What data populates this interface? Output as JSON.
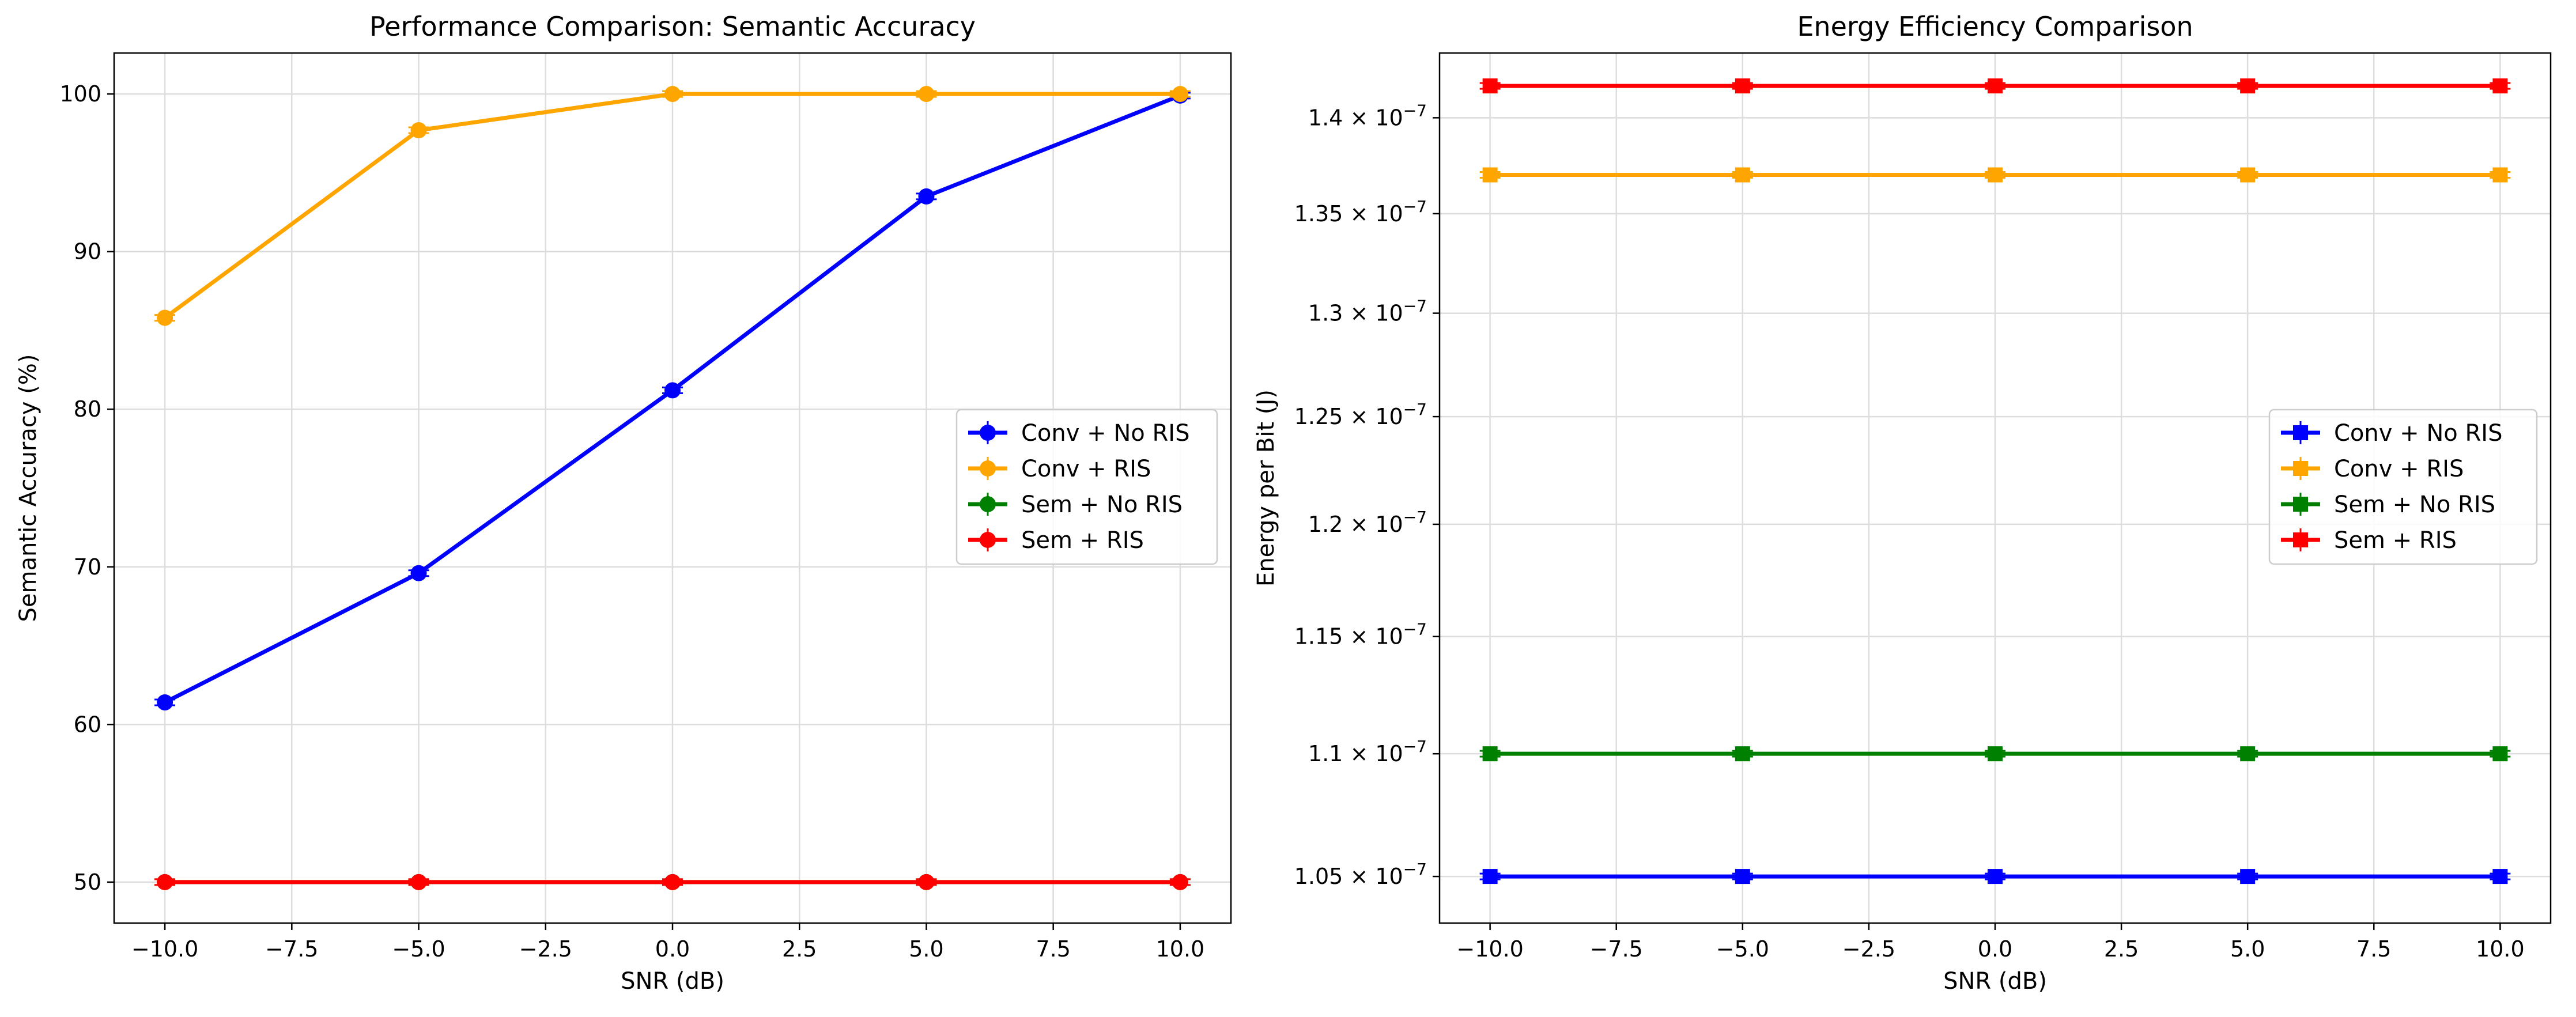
{
  "chart_data": [
    {
      "type": "line",
      "title": "Performance Comparison: Semantic Accuracy",
      "xlabel": "SNR (dB)",
      "ylabel": "Semantic Accuracy (%)",
      "x": [
        -10,
        -5,
        0,
        5,
        10
      ],
      "xlim": [
        -11,
        11
      ],
      "ylim": [
        47.4,
        102.6
      ],
      "yscale": "linear",
      "grid": true,
      "legend_location": "center right",
      "xticks": [
        -10,
        -7.5,
        -5,
        -2.5,
        0,
        2.5,
        5,
        7.5,
        10
      ],
      "xtick_labels": [
        "−10.0",
        "−7.5",
        "−5.0",
        "−2.5",
        "0.0",
        "2.5",
        "5.0",
        "7.5",
        "10.0"
      ],
      "yticks": [
        50,
        60,
        70,
        80,
        90,
        100
      ],
      "ytick_labels": [
        "50",
        "60",
        "70",
        "80",
        "90",
        "100"
      ],
      "series": [
        {
          "name": "Conv + No RIS",
          "color": "#0000ff",
          "marker": "circle",
          "values": [
            61.4,
            69.6,
            81.2,
            93.5,
            99.9
          ]
        },
        {
          "name": "Conv + RIS",
          "color": "#ffa500",
          "marker": "circle",
          "values": [
            85.8,
            97.7,
            100,
            100,
            100
          ]
        },
        {
          "name": "Sem + No RIS",
          "color": "#008000",
          "marker": "circle",
          "values": [
            50,
            50,
            50,
            50,
            50
          ]
        },
        {
          "name": "Sem + RIS",
          "color": "#ff0000",
          "marker": "circle",
          "values": [
            50,
            50,
            50,
            50,
            50
          ]
        }
      ]
    },
    {
      "type": "line",
      "title": "Energy Efficiency Comparison",
      "xlabel": "SNR (dB)",
      "ylabel": "Energy per Bit (J)",
      "x": [
        -10,
        -5,
        0,
        5,
        10
      ],
      "xlim": [
        -11,
        11
      ],
      "ylim": [
        1.0316e-07,
        1.4348e-07
      ],
      "yscale": "log",
      "grid": true,
      "legend_location": "center right",
      "xticks": [
        -10,
        -7.5,
        -5,
        -2.5,
        0,
        2.5,
        5,
        7.5,
        10
      ],
      "xtick_labels": [
        "−10.0",
        "−7.5",
        "−5.0",
        "−2.5",
        "0.0",
        "2.5",
        "5.0",
        "7.5",
        "10.0"
      ],
      "yticks": [
        1.05e-07,
        1.1e-07,
        1.15e-07,
        1.2e-07,
        1.25e-07,
        1.3e-07,
        1.35e-07,
        1.4e-07
      ],
      "ytick_labels": [
        {
          "mantissa": "1.05",
          "exponent": "−7"
        },
        {
          "mantissa": "1.1",
          "exponent": "−7"
        },
        {
          "mantissa": "1.15",
          "exponent": "−7"
        },
        {
          "mantissa": "1.2",
          "exponent": "−7"
        },
        {
          "mantissa": "1.25",
          "exponent": "−7"
        },
        {
          "mantissa": "1.3",
          "exponent": "−7"
        },
        {
          "mantissa": "1.35",
          "exponent": "−7"
        },
        {
          "mantissa": "1.4",
          "exponent": "−7"
        }
      ],
      "series": [
        {
          "name": "Conv + No RIS",
          "color": "#0000ff",
          "marker": "square",
          "values": [
            1.05e-07,
            1.05e-07,
            1.05e-07,
            1.05e-07,
            1.05e-07
          ]
        },
        {
          "name": "Conv + RIS",
          "color": "#ffa500",
          "marker": "square",
          "values": [
            1.37e-07,
            1.37e-07,
            1.37e-07,
            1.37e-07,
            1.37e-07
          ]
        },
        {
          "name": "Sem + No RIS",
          "color": "#008000",
          "marker": "square",
          "values": [
            1.1e-07,
            1.1e-07,
            1.1e-07,
            1.1e-07,
            1.1e-07
          ]
        },
        {
          "name": "Sem + RIS",
          "color": "#ff0000",
          "marker": "square",
          "values": [
            1.417e-07,
            1.417e-07,
            1.417e-07,
            1.417e-07,
            1.417e-07
          ]
        }
      ]
    }
  ]
}
